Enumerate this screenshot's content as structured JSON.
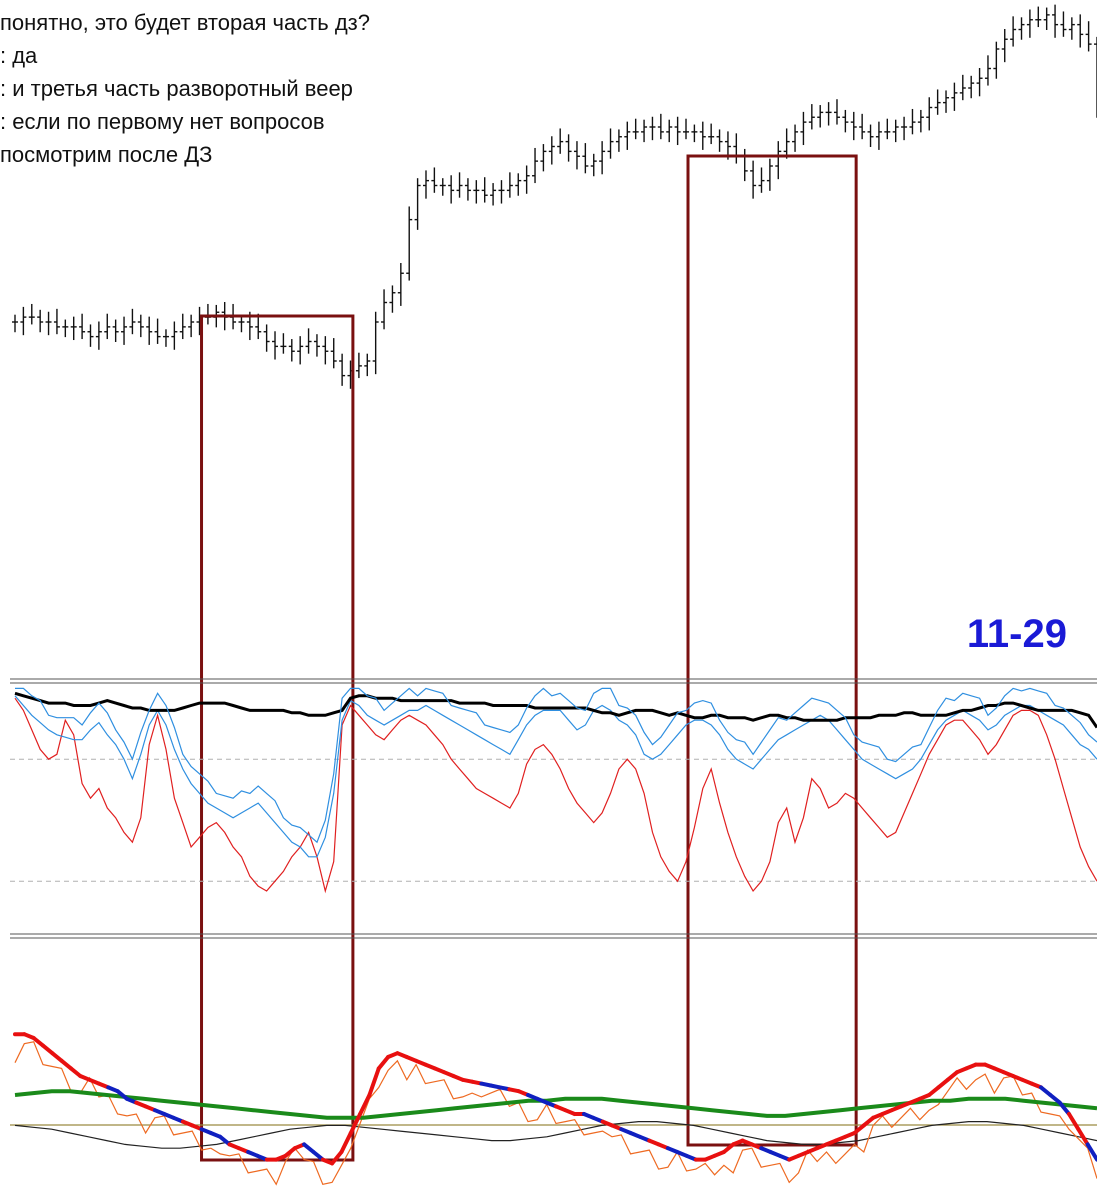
{
  "chat_lines": [
    "понятно, это будет вторая часть дз?",
    ": да",
    ": и третья часть разворотный веер",
    ": если по первому нет вопросов",
    "посмотрим после ДЗ"
  ],
  "chart_label": "11-29",
  "colors": {
    "highlight_box": "#7a1010",
    "price_bars": "#111111",
    "osc_top_black": "#000000",
    "osc_top_blue": "#2f8fe0",
    "osc_top_red": "#e02020",
    "osc_bottom_red": "#e81010",
    "osc_bottom_blue": "#1020c0",
    "osc_bottom_green": "#1a8a1a",
    "osc_bottom_orange": "#ee6a22",
    "osc_bottom_black": "#222222",
    "level_line": "#9a8a40",
    "dashed_level": "#b0b0b0"
  },
  "chart_data": {
    "type": "line",
    "panels": [
      {
        "name": "price",
        "bars": 130,
        "close": [
          36,
          37,
          37,
          36,
          36,
          35,
          35,
          35,
          34,
          33,
          34,
          35,
          34,
          35,
          36,
          35,
          34,
          33,
          33,
          34,
          35,
          36,
          37,
          37,
          38,
          37,
          36,
          36,
          35,
          34,
          32,
          31,
          31,
          30,
          31,
          32,
          31,
          30,
          28,
          25,
          26,
          27,
          28,
          36,
          40,
          42,
          46,
          57,
          64,
          65,
          64,
          64,
          63,
          64,
          63,
          63,
          62,
          63,
          63,
          64,
          65,
          66,
          69,
          71,
          72,
          73,
          71,
          70,
          68,
          69,
          71,
          73,
          74,
          75,
          75,
          76,
          76,
          75,
          76,
          75,
          75,
          75,
          74,
          74,
          73,
          72,
          70,
          67,
          64,
          65,
          68,
          71,
          73,
          75,
          77,
          78,
          79,
          79,
          78,
          77,
          76,
          75,
          74,
          75,
          75,
          76,
          76,
          77,
          78,
          80,
          81,
          82,
          83,
          84,
          85,
          86,
          88,
          92,
          94,
          96,
          97,
          98,
          98,
          99,
          97,
          96,
          97,
          95,
          93,
          80
        ],
        "highlights": [
          {
            "from_bar": 22,
            "to_bar": 41
          },
          {
            "from_bar": 80,
            "to_bar": 101
          }
        ]
      },
      {
        "name": "oscillator-1",
        "series": [
          {
            "name": "",
            "color": "black",
            "values": [
              97,
              96,
              95,
              94,
              93,
              93,
              93,
              92,
              92,
              92,
              93,
              94,
              93,
              92,
              91,
              91,
              90,
              90,
              90,
              90,
              91,
              92,
              93,
              93,
              93,
              93,
              92,
              91,
              90,
              90,
              90,
              90,
              90,
              89,
              89,
              88,
              88,
              88,
              89,
              90,
              95,
              96,
              96,
              95,
              95,
              95,
              94,
              94,
              94,
              94,
              94,
              94,
              94,
              93,
              93,
              93,
              93,
              92,
              92,
              92,
              92,
              92,
              91,
              91,
              91,
              91,
              91,
              91,
              91,
              90,
              89,
              89,
              88,
              89,
              90,
              90,
              90,
              89,
              88,
              89,
              88,
              87,
              87,
              88,
              88,
              87,
              87,
              87,
              86,
              87,
              88,
              88,
              87,
              87,
              86,
              86,
              86,
              86,
              86,
              87,
              87,
              87,
              87,
              88,
              88,
              88,
              89,
              89,
              88,
              88,
              88,
              88,
              89,
              90,
              90,
              91,
              92,
              92,
              93,
              93,
              92,
              91,
              90,
              90,
              90,
              90,
              90,
              89,
              88,
              83
            ]
          },
          {
            "name": "",
            "color": "blue",
            "values": [
              96,
              92,
              88,
              85,
              82,
              80,
              79,
              78,
              78,
              82,
              85,
              80,
              76,
              70,
              62,
              72,
              84,
              90,
              84,
              74,
              66,
              60,
              56,
              52,
              50,
              48,
              46,
              48,
              50,
              52,
              48,
              44,
              40,
              36,
              34,
              30,
              30,
              38,
              56,
              86,
              94,
              92,
              88,
              86,
              84,
              86,
              88,
              90,
              90,
              92,
              90,
              88,
              86,
              84,
              82,
              80,
              78,
              76,
              74,
              72,
              78,
              84,
              88,
              90,
              90,
              90,
              86,
              82,
              84,
              90,
              92,
              90,
              86,
              84,
              80,
              72,
              70,
              72,
              76,
              80,
              84,
              86,
              86,
              84,
              80,
              74,
              70,
              68,
              66,
              70,
              74,
              78,
              80,
              82,
              84,
              86,
              88,
              86,
              82,
              78,
              74,
              70,
              68,
              66,
              64,
              62,
              64,
              66,
              70,
              76,
              82,
              86,
              88,
              90,
              88,
              86,
              82,
              84,
              88,
              90,
              92,
              92,
              90,
              88,
              86,
              84,
              80,
              76,
              74,
              70
            ]
          },
          {
            "name": "",
            "color": "red",
            "values": [
              95,
              90,
              82,
              74,
              70,
              72,
              86,
              80,
              60,
              54,
              58,
              50,
              46,
              40,
              36,
              46,
              76,
              88,
              74,
              54,
              44,
              34,
              38,
              42,
              44,
              40,
              34,
              30,
              22,
              18,
              16,
              20,
              24,
              30,
              34,
              40,
              30,
              16,
              28,
              84,
              92,
              88,
              84,
              80,
              78,
              82,
              86,
              88,
              86,
              84,
              80,
              76,
              70,
              66,
              62,
              58,
              56,
              54,
              52,
              50,
              56,
              68,
              74,
              76,
              72,
              66,
              58,
              52,
              48,
              44,
              48,
              56,
              66,
              70,
              66,
              56,
              40,
              30,
              24,
              20,
              28,
              42,
              58,
              66,
              52,
              40,
              30,
              22,
              16,
              20,
              28,
              44,
              50,
              36,
              46,
              62,
              58,
              50,
              52,
              56,
              54,
              50,
              46,
              42,
              38,
              40,
              48,
              56,
              64,
              72,
              78,
              84,
              86,
              86,
              82,
              78,
              72,
              76,
              82,
              88,
              90,
              90,
              88,
              80,
              70,
              58,
              46,
              34,
              26,
              20
            ]
          }
        ],
        "levels": [
          70,
          20
        ]
      },
      {
        "name": "oscillator-2",
        "series": [
          {
            "name": "",
            "color": "red/blue",
            "values": [
              72,
              72,
              70,
              66,
              62,
              58,
              54,
              50,
              48,
              46,
              44,
              42,
              38,
              36,
              34,
              32,
              30,
              28,
              26,
              24,
              22,
              20,
              18,
              14,
              12,
              10,
              8,
              6,
              6,
              8,
              12,
              14,
              10,
              6,
              4,
              10,
              20,
              30,
              40,
              54,
              60,
              62,
              60,
              58,
              56,
              54,
              52,
              50,
              48,
              47,
              46,
              45,
              44,
              43,
              42,
              40,
              38,
              36,
              34,
              32,
              30,
              30,
              28,
              26,
              24,
              22,
              20,
              18,
              16,
              14,
              12,
              10,
              8,
              6,
              6,
              8,
              10,
              14,
              16,
              14,
              12,
              10,
              8,
              6,
              8,
              10,
              12,
              14,
              16,
              18,
              20,
              24,
              28,
              30,
              32,
              34,
              36,
              38,
              40,
              44,
              48,
              52,
              54,
              56,
              56,
              54,
              52,
              50,
              48,
              46,
              44,
              40,
              36,
              30,
              22,
              14,
              6
            ]
          },
          {
            "name": "",
            "color": "green",
            "values": [
              40,
              41,
              42,
              42,
              41,
              40,
              39,
              38,
              37,
              36,
              35,
              34,
              33,
              32,
              31,
              30,
              29,
              28,
              28,
              28,
              29,
              30,
              31,
              32,
              33,
              34,
              35,
              36,
              37,
              37,
              38,
              38,
              38,
              37,
              36,
              35,
              34,
              33,
              32,
              31,
              30,
              29,
              29,
              30,
              31,
              32,
              33,
              34,
              35,
              36,
              37,
              37,
              38,
              38,
              38,
              37,
              36,
              35,
              34,
              33
            ]
          },
          {
            "name": "",
            "color": "black",
            "values": [
              18,
              17,
              16,
              14,
              12,
              10,
              8,
              7,
              6,
              6,
              7,
              8,
              10,
              12,
              14,
              16,
              17,
              18,
              18,
              17,
              16,
              15,
              14,
              13,
              12,
              11,
              10,
              10,
              11,
              12,
              14,
              16,
              18,
              19,
              20,
              20,
              19,
              18,
              16,
              14,
              12,
              10,
              9,
              8,
              8,
              9,
              10,
              12,
              14,
              16,
              18,
              19,
              20,
              20,
              19,
              18,
              16,
              14,
              12,
              10
            ]
          }
        ]
      }
    ]
  }
}
